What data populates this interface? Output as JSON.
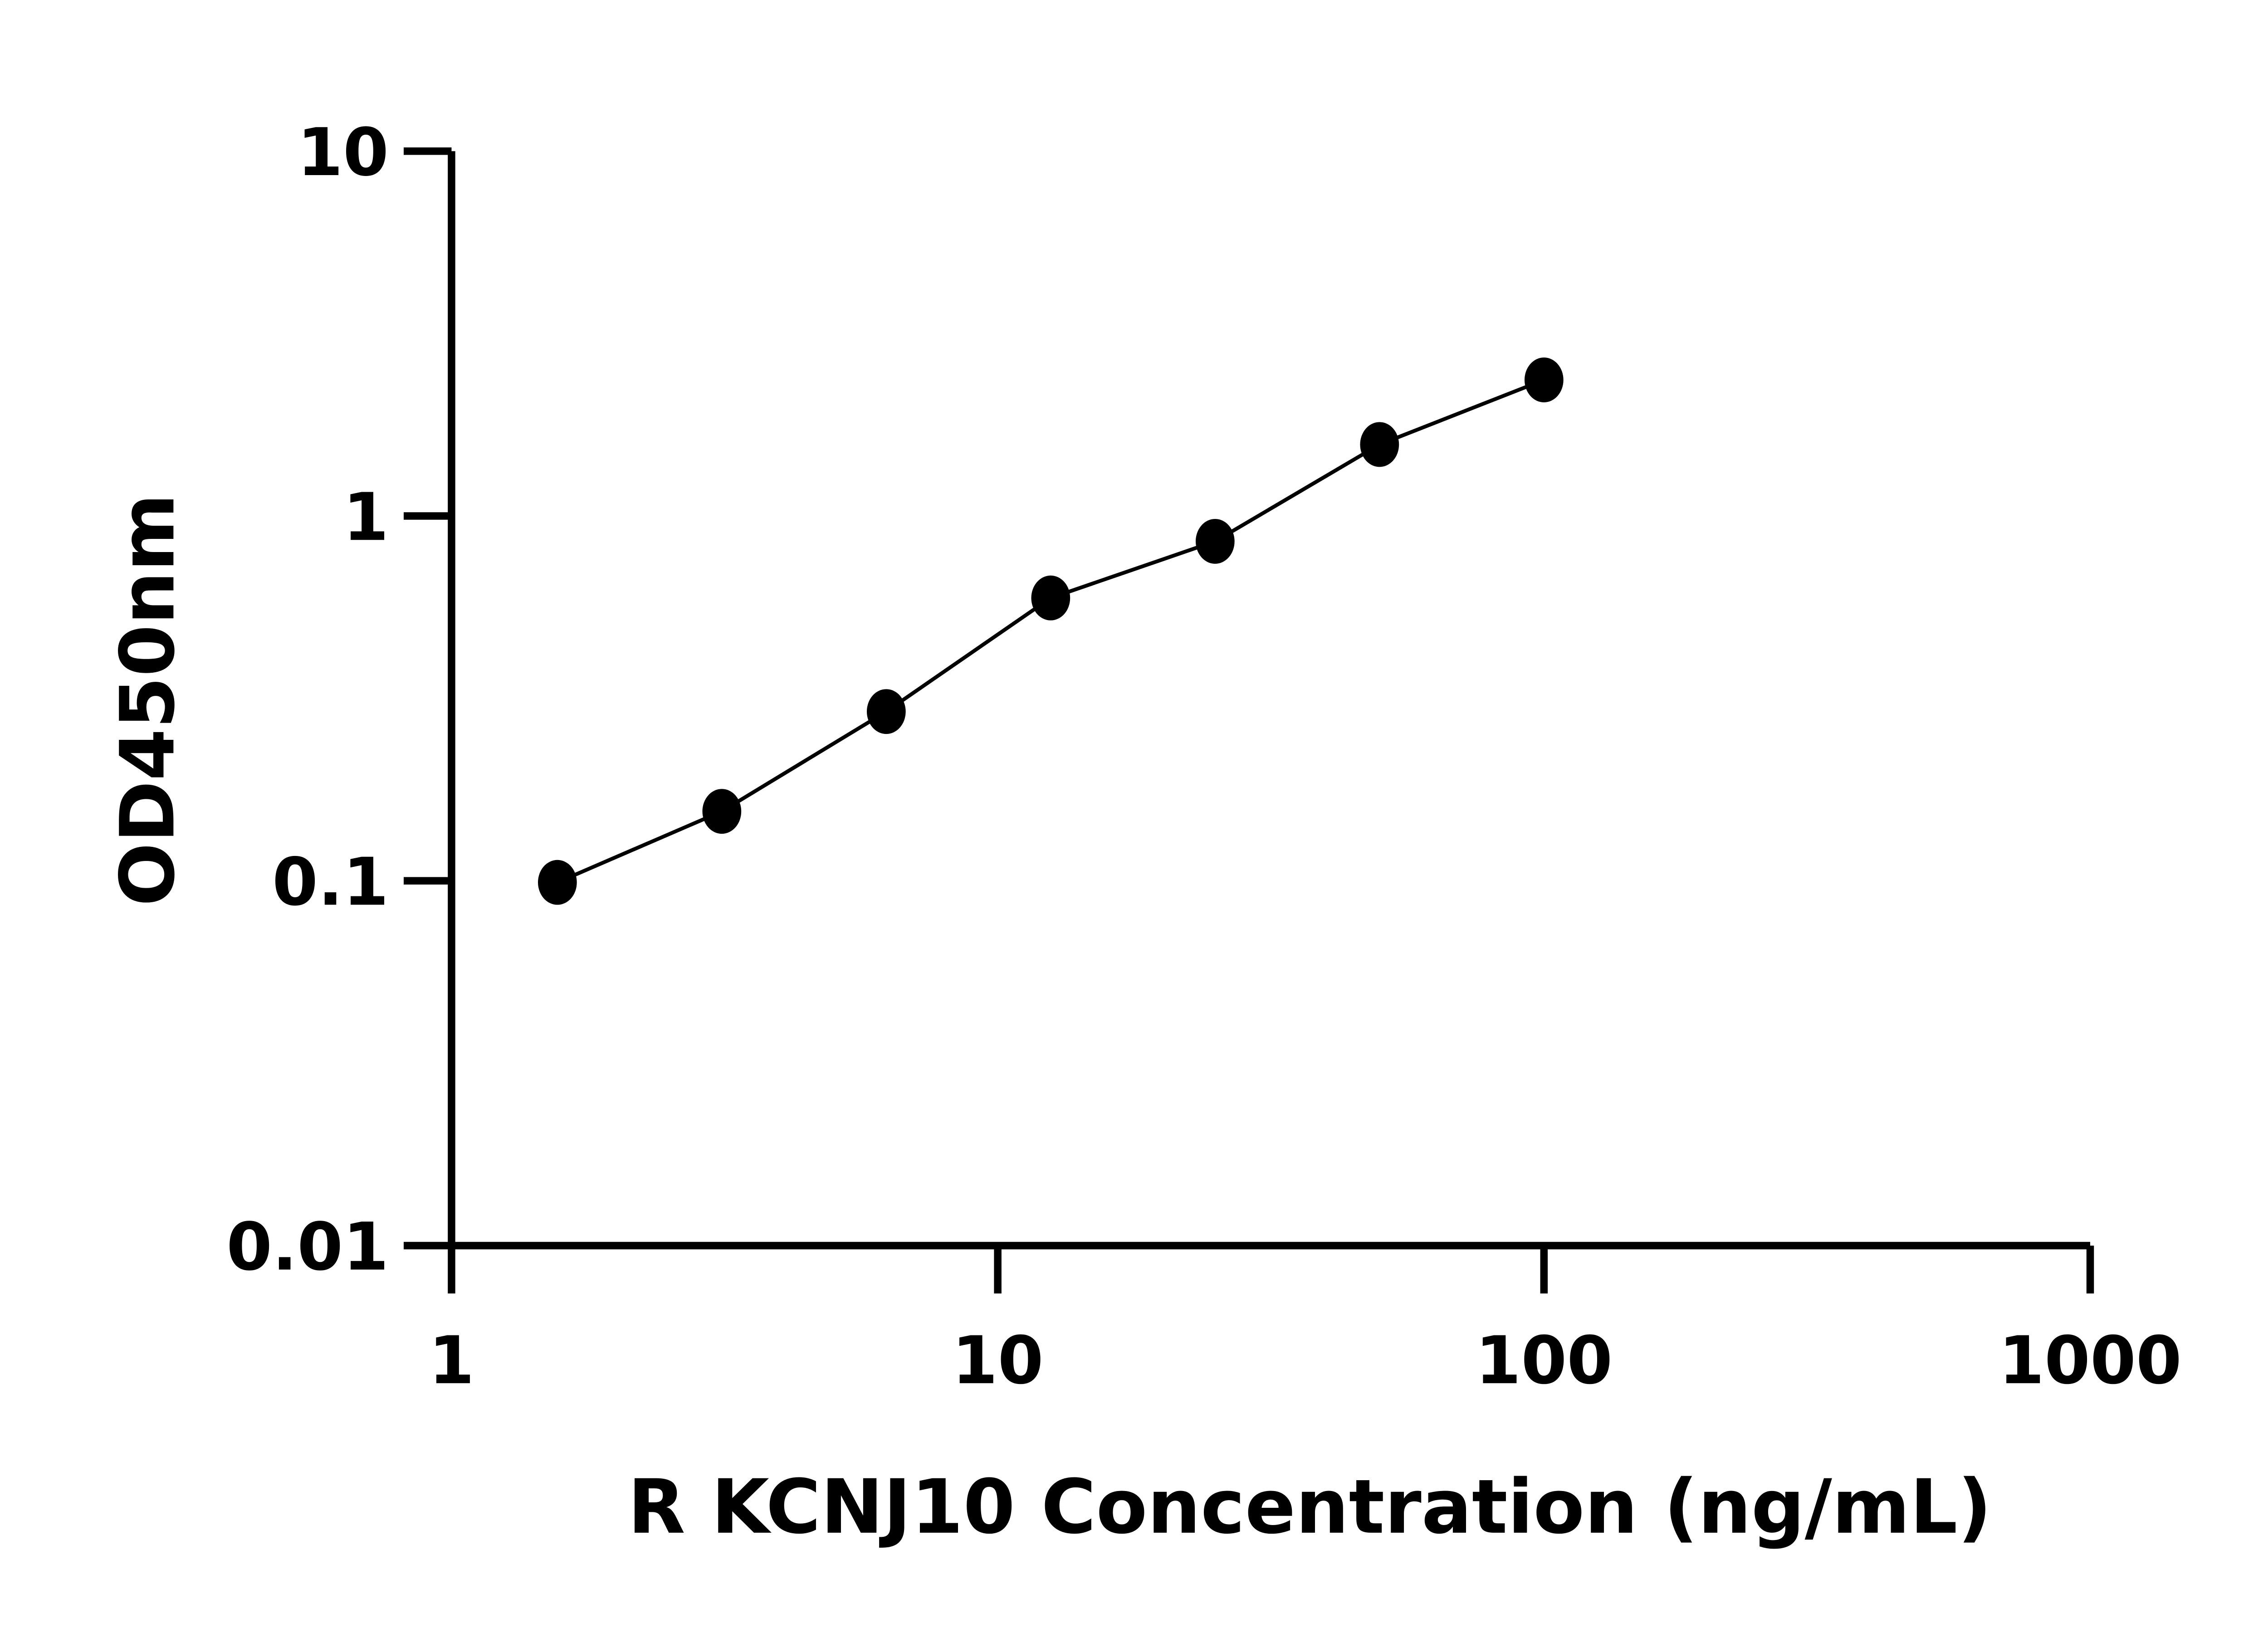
{
  "chart_data": {
    "type": "scatter",
    "title": "",
    "xlabel": "R KCNJ10 Concentration (ng/mL)",
    "ylabel": "OD450nm",
    "xscale": "log",
    "yscale": "log",
    "xlim": [
      1,
      1000
    ],
    "ylim": [
      0.01,
      10
    ],
    "xticks": [
      "1",
      "10",
      "100",
      "1000"
    ],
    "yticks": [
      "0.01",
      "0.1",
      "1",
      "10"
    ],
    "grid": false,
    "legend": "none",
    "color": "#000000",
    "fit_line": true,
    "x": [
      1.5625,
      3.125,
      6.25,
      12.5,
      25,
      50,
      100
    ],
    "y": [
      0.099,
      0.155,
      0.291,
      0.596,
      0.852,
      1.57,
      2.36
    ]
  }
}
